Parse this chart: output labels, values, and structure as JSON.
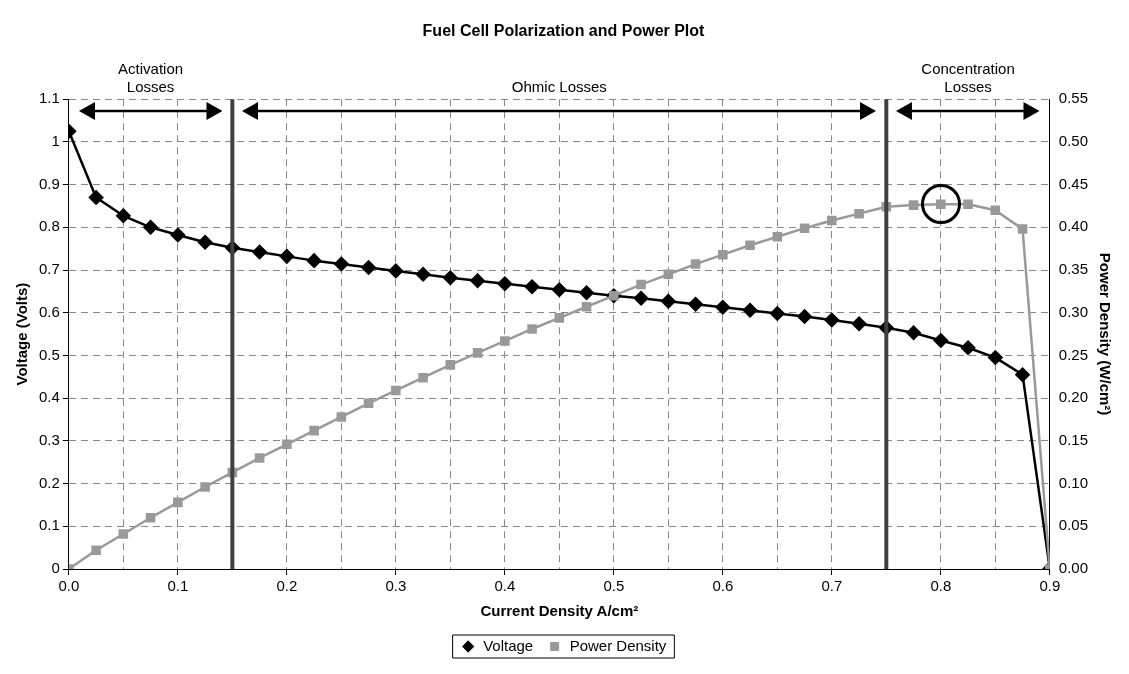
{
  "chart_data": {
    "type": "line",
    "title": "Fuel Cell Polarization and Power Plot",
    "xlabel": "Current Density A/cm²",
    "ylabel": "Voltage (Volts)",
    "y2label": "Power Density (W/cm²)",
    "x": [
      0,
      0.025,
      0.05,
      0.075,
      0.1,
      0.125,
      0.15,
      0.175,
      0.2,
      0.225,
      0.25,
      0.275,
      0.3,
      0.325,
      0.35,
      0.375,
      0.4,
      0.425,
      0.45,
      0.475,
      0.5,
      0.525,
      0.55,
      0.575,
      0.6,
      0.625,
      0.65,
      0.675,
      0.7,
      0.725,
      0.75,
      0.775,
      0.8,
      0.825,
      0.85,
      0.875,
      0.9
    ],
    "series": [
      {
        "name": "Voltage",
        "color": "#000000",
        "marker": "diamond",
        "values": [
          1.025,
          0.87,
          0.827,
          0.8,
          0.782,
          0.765,
          0.752,
          0.742,
          0.732,
          0.722,
          0.714,
          0.706,
          0.698,
          0.69,
          0.682,
          0.675,
          0.668,
          0.661,
          0.654,
          0.647,
          0.64,
          0.634,
          0.627,
          0.62,
          0.613,
          0.606,
          0.598,
          0.591,
          0.583,
          0.574,
          0.565,
          0.553,
          0.535,
          0.518,
          0.495,
          0.455,
          0
        ]
      },
      {
        "name": "Power Density",
        "color": "#999999",
        "marker": "square",
        "axis": "y2",
        "values": [
          0,
          0.022,
          0.041,
          0.06,
          0.078,
          0.096,
          0.113,
          0.13,
          0.146,
          0.162,
          0.178,
          0.194,
          0.209,
          0.224,
          0.239,
          0.253,
          0.267,
          0.281,
          0.294,
          0.307,
          0.32,
          0.333,
          0.345,
          0.357,
          0.368,
          0.379,
          0.389,
          0.399,
          0.408,
          0.416,
          0.424,
          0.426,
          0.427,
          0.427,
          0.42,
          0.398,
          0
        ]
      }
    ],
    "xlim": [
      0,
      0.9
    ],
    "xticks": [
      {
        "value": 0,
        "label": "0.0"
      },
      {
        "value": 0.05,
        "label": null
      },
      0.1,
      0.2,
      {
        "value": 0.25,
        "label": null
      },
      0.3,
      {
        "value": 0.35,
        "label": null
      },
      0.4,
      {
        "value": 0.45,
        "label": null
      },
      0.5,
      {
        "value": 0.55,
        "label": null
      },
      0.6,
      {
        "value": 0.65,
        "label": null
      },
      0.7,
      0.8,
      {
        "value": 0.85,
        "label": null
      },
      0.9
    ],
    "ylim": [
      0,
      1.1
    ],
    "yticks": [
      0,
      0.1,
      0.2,
      0.3,
      0.4,
      0.5,
      0.6,
      0.7,
      0.8,
      0.9,
      1,
      1.1
    ],
    "y2lim": [
      0,
      0.55
    ],
    "y2ticks": [
      {
        "value": 0,
        "label": "0.00"
      },
      {
        "value": 0.05,
        "label": "0.05"
      },
      {
        "value": 0.1,
        "label": "0.10"
      },
      {
        "value": 0.15,
        "label": "0.15"
      },
      {
        "value": 0.2,
        "label": "0.20"
      },
      {
        "value": 0.25,
        "label": "0.25"
      },
      {
        "value": 0.3,
        "label": "0.30"
      },
      {
        "value": 0.35,
        "label": "0.35"
      },
      {
        "value": 0.4,
        "label": "0.40"
      },
      {
        "value": 0.45,
        "label": "0.45"
      },
      {
        "value": 0.5,
        "label": "0.50"
      },
      {
        "value": 0.55,
        "label": "0.55"
      }
    ],
    "ref_lines": [
      {
        "axis": "x",
        "value": 0.15,
        "color": "#404040"
      },
      {
        "axis": "x",
        "value": 0.75,
        "color": "#404040"
      }
    ],
    "annotations": [
      "Activation Losses",
      "Ohmic Losses",
      "Concentration Losses"
    ],
    "grid": true,
    "legend": "bottom",
    "line_style": "solid"
  }
}
